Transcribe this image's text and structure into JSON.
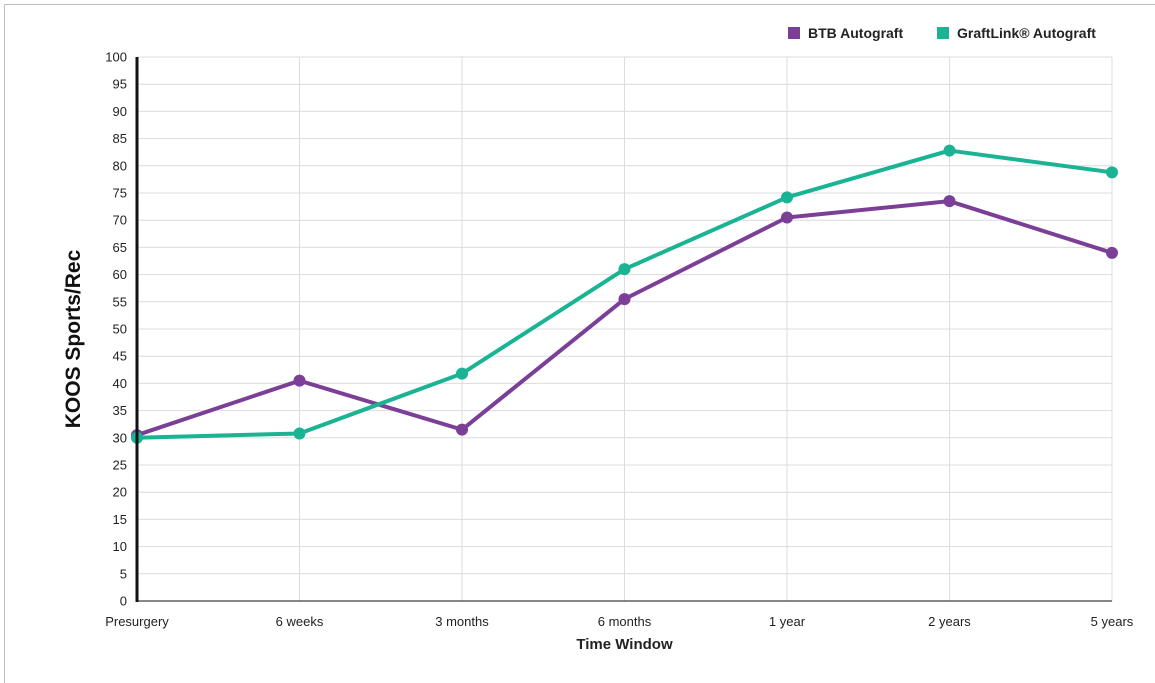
{
  "chart_data": {
    "type": "line",
    "xlabel": "Time Window",
    "ylabel": "KOOS Sports/Rec",
    "categories": [
      "Presurgery",
      "6 weeks",
      "3 months",
      "6 months",
      "1 year",
      "2 years",
      "5 years"
    ],
    "ylim": [
      0,
      100
    ],
    "yticks": [
      0,
      5,
      10,
      15,
      20,
      25,
      30,
      35,
      40,
      45,
      50,
      55,
      60,
      65,
      70,
      75,
      80,
      85,
      90,
      95,
      100
    ],
    "grid": true,
    "legend_position": "top-right",
    "series": [
      {
        "name": "BTB Autograft",
        "color": "#7b3f98",
        "values": [
          30.5,
          40.5,
          31.5,
          55.5,
          70.5,
          73.5,
          64
        ]
      },
      {
        "name": "GraftLink® Autograft",
        "color": "#1ab394",
        "values": [
          30,
          30.8,
          41.8,
          61,
          74.2,
          82.8,
          78.8
        ]
      }
    ]
  }
}
